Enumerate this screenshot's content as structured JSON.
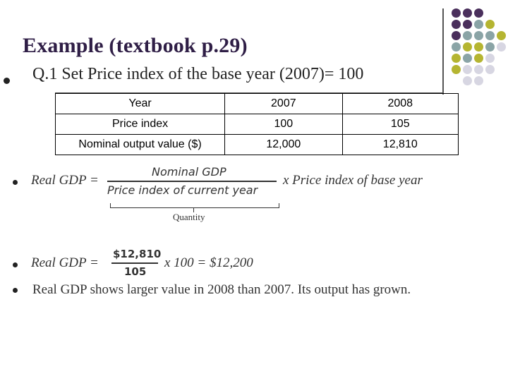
{
  "slide": {
    "title": "Example (textbook p.29)",
    "q1": "Q.1 Set Price index of the base year (2007)= 100",
    "table": {
      "rows": [
        [
          "Year",
          "2007",
          "2008"
        ],
        [
          "Price index",
          "100",
          "105"
        ],
        [
          "Nominal output value ($)",
          "12,000",
          "12,810"
        ]
      ]
    },
    "formula": {
      "lhs": "Real GDP =",
      "numerator": "Nominal GDP",
      "denominator": "Price index of  current year",
      "rhs": "x Price index of base year",
      "brace_label": "Quantity"
    },
    "calc": {
      "lhs": "Real GDP =",
      "numerator": "$12,810",
      "denominator": "105",
      "rhs": "x 100 = $12,200"
    },
    "conclusion": "Real GDP shows larger value in 2008 than 2007. Its output has grown."
  },
  "colors": {
    "title": "#2f1e46",
    "purple": "#4a2f5c",
    "teal": "#8aa4a6",
    "olive": "#b5b531",
    "light": "#d7d6e2"
  }
}
